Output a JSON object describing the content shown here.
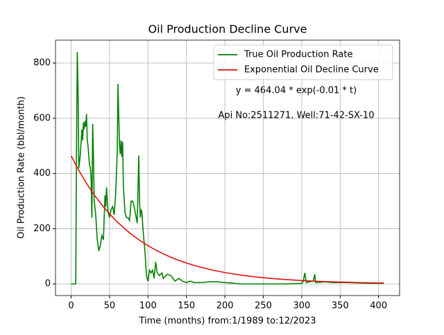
{
  "chart_data": {
    "type": "line",
    "title": "Oil Production Decline Curve",
    "xlabel": "Time (months) from:1/1989 to:12/2023",
    "ylabel": "Oil Production Rate (bbl/month)",
    "annotations": [
      "y = 464.04 * exp(-0.01 * t)",
      "Api No:2511271, Well:71-42-SX-10"
    ],
    "xlim": [
      -20.35,
      427.35
    ],
    "ylim": [
      -42,
      883
    ],
    "xticks": [
      0,
      50,
      100,
      150,
      200,
      250,
      300,
      350,
      400
    ],
    "yticks": [
      0,
      200,
      400,
      600,
      800
    ],
    "grid": true,
    "legend": "upper right",
    "series": [
      {
        "name": "True Oil Production Rate",
        "color": "#008000",
        "x": [
          0,
          5,
          6,
          7,
          8,
          9,
          10,
          12,
          14,
          15,
          16,
          17,
          18,
          19,
          20,
          21,
          22,
          23,
          24,
          25,
          26,
          27,
          28,
          29,
          30,
          32,
          34,
          36,
          38,
          40,
          42,
          44,
          45,
          46,
          47,
          48,
          50,
          52,
          54,
          56,
          58,
          60,
          61,
          62,
          63,
          64,
          65,
          66,
          67,
          68,
          70,
          72,
          74,
          76,
          78,
          80,
          82,
          84,
          86,
          88,
          89,
          90,
          91,
          92,
          94,
          96,
          98,
          100,
          102,
          104,
          106,
          108,
          110,
          112,
          115,
          118,
          120,
          125,
          130,
          135,
          140,
          145,
          150,
          155,
          160,
          170,
          180,
          190,
          200,
          210,
          220,
          250,
          280,
          300,
          302,
          304,
          306,
          310,
          315,
          317,
          318,
          320,
          330,
          340,
          360,
          380,
          400,
          407
        ],
        "values": [
          0,
          0,
          0,
          500,
          840,
          700,
          420,
          470,
          560,
          520,
          585,
          560,
          590,
          570,
          615,
          520,
          500,
          460,
          430,
          420,
          380,
          240,
          580,
          470,
          300,
          250,
          160,
          120,
          140,
          175,
          160,
          320,
          280,
          350,
          300,
          260,
          240,
          270,
          280,
          250,
          330,
          480,
          725,
          600,
          500,
          470,
          520,
          460,
          515,
          350,
          260,
          240,
          240,
          230,
          300,
          300,
          280,
          250,
          220,
          465,
          300,
          240,
          270,
          260,
          180,
          120,
          30,
          10,
          50,
          40,
          50,
          20,
          80,
          40,
          30,
          40,
          20,
          35,
          30,
          10,
          20,
          10,
          5,
          10,
          5,
          5,
          8,
          8,
          5,
          3,
          0,
          0,
          0,
          2,
          10,
          40,
          5,
          8,
          10,
          35,
          5,
          5,
          8,
          5,
          5,
          3,
          2,
          2
        ]
      },
      {
        "name": "Exponential Oil Decline Curve",
        "color": "#e01010",
        "x": [
          0,
          10,
          20,
          30,
          40,
          50,
          60,
          70,
          80,
          90,
          100,
          110,
          120,
          130,
          140,
          150,
          160,
          170,
          180,
          190,
          200,
          220,
          240,
          260,
          280,
          300,
          320,
          340,
          360,
          380,
          407
        ],
        "values": [
          464.0,
          411.2,
          364.4,
          322.9,
          286.2,
          253.6,
          224.7,
          199.2,
          176.5,
          156.4,
          138.6,
          122.8,
          108.9,
          96.5,
          85.5,
          75.8,
          67.1,
          59.5,
          52.7,
          46.7,
          41.4,
          32.5,
          25.5,
          20.0,
          15.7,
          12.4,
          9.7,
          7.6,
          6.0,
          4.7,
          3.4
        ]
      }
    ]
  }
}
